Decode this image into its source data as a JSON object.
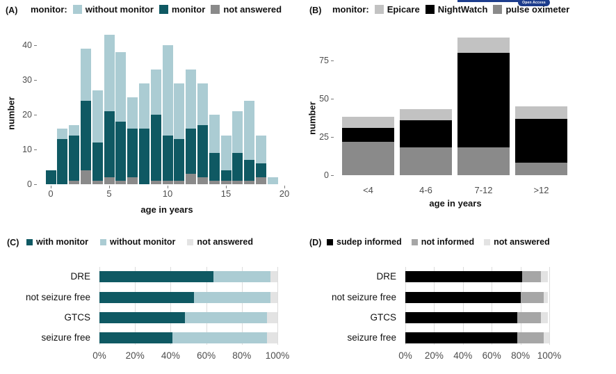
{
  "logo": {
    "label": "Open Access",
    "color": "#1c3c8c"
  },
  "colors": {
    "dark_teal": "#0f5963",
    "light_teal": "#abccd3",
    "gray": "#8a8a8a",
    "light_gray": "#c2c2c2",
    "lighter_gray": "#e3e3e3",
    "mid_gray": "#a6a6a6",
    "black": "#000000"
  },
  "chart_data": [
    {
      "panel": "(A)",
      "type": "bar",
      "stacked": true,
      "legend_prefix": "monitor:",
      "legend": [
        {
          "label": "without monitor",
          "color": "#abccd3"
        },
        {
          "label": "monitor",
          "color": "#0f5963"
        },
        {
          "label": "not answered",
          "color": "#8a8a8a"
        }
      ],
      "xlabel": "age in years",
      "ylabel": "number",
      "x": [
        0,
        1,
        2,
        3,
        4,
        5,
        6,
        7,
        8,
        9,
        10,
        11,
        12,
        13,
        14,
        15,
        16,
        17,
        18,
        19
      ],
      "xticks": [
        0,
        5,
        10,
        15,
        20
      ],
      "yticks": [
        0,
        10,
        20,
        30,
        40
      ],
      "ylim": [
        0,
        44
      ],
      "series": [
        {
          "name": "not answered",
          "color": "#8a8a8a",
          "values": [
            0,
            0,
            1,
            4,
            1,
            2,
            1,
            2,
            0,
            1,
            1,
            1,
            3,
            2,
            1,
            1,
            1,
            1,
            2,
            0
          ]
        },
        {
          "name": "monitor",
          "color": "#0f5963",
          "values": [
            4,
            13,
            13,
            20,
            11,
            19,
            17,
            14,
            16,
            19,
            13,
            12,
            13,
            15,
            8,
            3,
            8,
            6,
            4,
            0
          ]
        },
        {
          "name": "without monitor",
          "color": "#abccd3",
          "values": [
            0,
            3,
            3,
            15,
            15,
            22,
            20,
            9,
            13,
            13,
            26,
            16,
            17,
            12,
            11,
            10,
            12,
            17,
            8,
            2
          ]
        }
      ]
    },
    {
      "panel": "(B)",
      "type": "bar",
      "stacked": true,
      "legend_prefix": "monitor:",
      "legend": [
        {
          "label": "Epicare",
          "color": "#c2c2c2"
        },
        {
          "label": "NightWatch",
          "color": "#000000"
        },
        {
          "label": "pulse oximeter",
          "color": "#8a8a8a"
        }
      ],
      "xlabel": "age in years",
      "ylabel": "number",
      "categories": [
        "<4",
        "4-6",
        "7-12",
        ">12"
      ],
      "yticks": [
        0,
        25,
        50,
        75
      ],
      "ylim": [
        0,
        95
      ],
      "series": [
        {
          "name": "pulse oximeter",
          "color": "#8a8a8a",
          "values": [
            22,
            18,
            18,
            8
          ]
        },
        {
          "name": "NightWatch",
          "color": "#000000",
          "values": [
            9,
            18,
            62,
            29
          ]
        },
        {
          "name": "Epicare",
          "color": "#c2c2c2",
          "values": [
            7,
            7,
            10,
            8
          ]
        }
      ]
    },
    {
      "panel": "(C)",
      "type": "hbar",
      "stacked": true,
      "legend": [
        {
          "label": "with monitor",
          "color": "#0f5963"
        },
        {
          "label": "without monitor",
          "color": "#abccd3"
        },
        {
          "label": "not answered",
          "color": "#e3e3e3"
        }
      ],
      "categories": [
        "DRE",
        "not seizure free",
        "GTCS",
        "seizure free"
      ],
      "xticks": [
        "0%",
        "20%",
        "40%",
        "60%",
        "80%",
        "100%"
      ],
      "xlim": [
        0,
        100
      ],
      "series": [
        {
          "name": "with monitor",
          "color": "#0f5963",
          "values": [
            64,
            53,
            48,
            41
          ]
        },
        {
          "name": "without monitor",
          "color": "#abccd3",
          "values": [
            32,
            43,
            46,
            53
          ]
        },
        {
          "name": "not answered",
          "color": "#e3e3e3",
          "values": [
            4,
            4,
            6,
            6
          ]
        }
      ]
    },
    {
      "panel": "(D)",
      "type": "hbar",
      "stacked": true,
      "legend": [
        {
          "label": "sudep informed",
          "color": "#000000"
        },
        {
          "label": "not informed",
          "color": "#a6a6a6"
        },
        {
          "label": "not answered",
          "color": "#e3e3e3"
        }
      ],
      "categories": [
        "DRE",
        "not seizure free",
        "GTCS",
        "seizure free"
      ],
      "xticks": [
        "0%",
        "20%",
        "40%",
        "60%",
        "80%",
        "100%"
      ],
      "xlim": [
        0,
        100
      ],
      "series": [
        {
          "name": "sudep informed",
          "color": "#000000",
          "values": [
            81,
            80,
            78,
            78
          ]
        },
        {
          "name": "not informed",
          "color": "#a6a6a6",
          "values": [
            13,
            16,
            16,
            18
          ]
        },
        {
          "name": "not answered",
          "color": "#e3e3e3",
          "values": [
            5,
            3,
            5,
            4
          ]
        }
      ]
    }
  ]
}
